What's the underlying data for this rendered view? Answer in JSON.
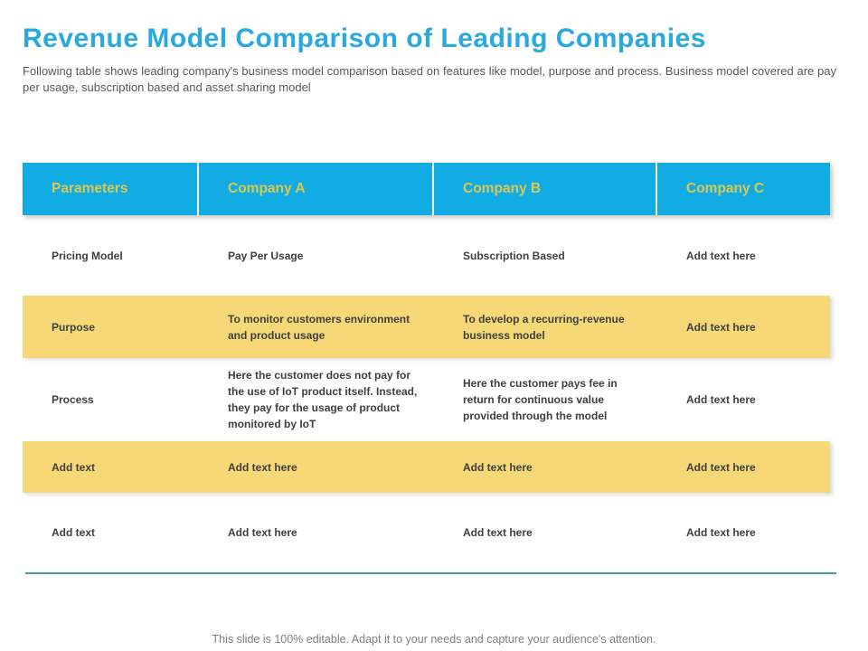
{
  "slide": {
    "title": "Revenue Model Comparison of Leading Companies",
    "subtitle": "Following table shows leading company's business model comparison based on features like model, purpose and process. Business model covered are pay per usage, subscription based and asset sharing model",
    "footer": "This slide is 100% editable. Adapt it to your needs and capture your audience's attention."
  },
  "table": {
    "headers": [
      "Parameters",
      "Company A",
      "Company B",
      "Company C"
    ],
    "rows": [
      {
        "highlight": false,
        "cells": [
          "Pricing Model",
          "Pay Per Usage",
          "Subscription Based",
          "Add text here"
        ]
      },
      {
        "highlight": true,
        "cells": [
          "Purpose",
          "To monitor customers environment and product usage",
          "To develop a recurring-revenue business model",
          "Add text here"
        ]
      },
      {
        "highlight": false,
        "cells": [
          "Process",
          "Here the customer does not pay for the use of IoT product itself. Instead, they pay for the usage of product monitored by IoT",
          "Here the customer pays fee in return for continuous value provided through the model",
          "Add text here"
        ]
      },
      {
        "highlight": true,
        "cells": [
          "Add text",
          "Add text here",
          "Add text here",
          "Add text here"
        ]
      },
      {
        "highlight": false,
        "cells": [
          "Add text",
          "Add text here",
          "Add text here",
          "Add text here"
        ]
      }
    ]
  },
  "colors": {
    "title": "#29A9E0",
    "header_bg": "#12ACE4",
    "header_text": "#DCC84E",
    "row_highlight": "#F6D877",
    "cell_text": "#3F3F3F",
    "subtitle_text": "#595959",
    "divider_line": "#44A296",
    "footer_text": "#7F7F7F"
  }
}
